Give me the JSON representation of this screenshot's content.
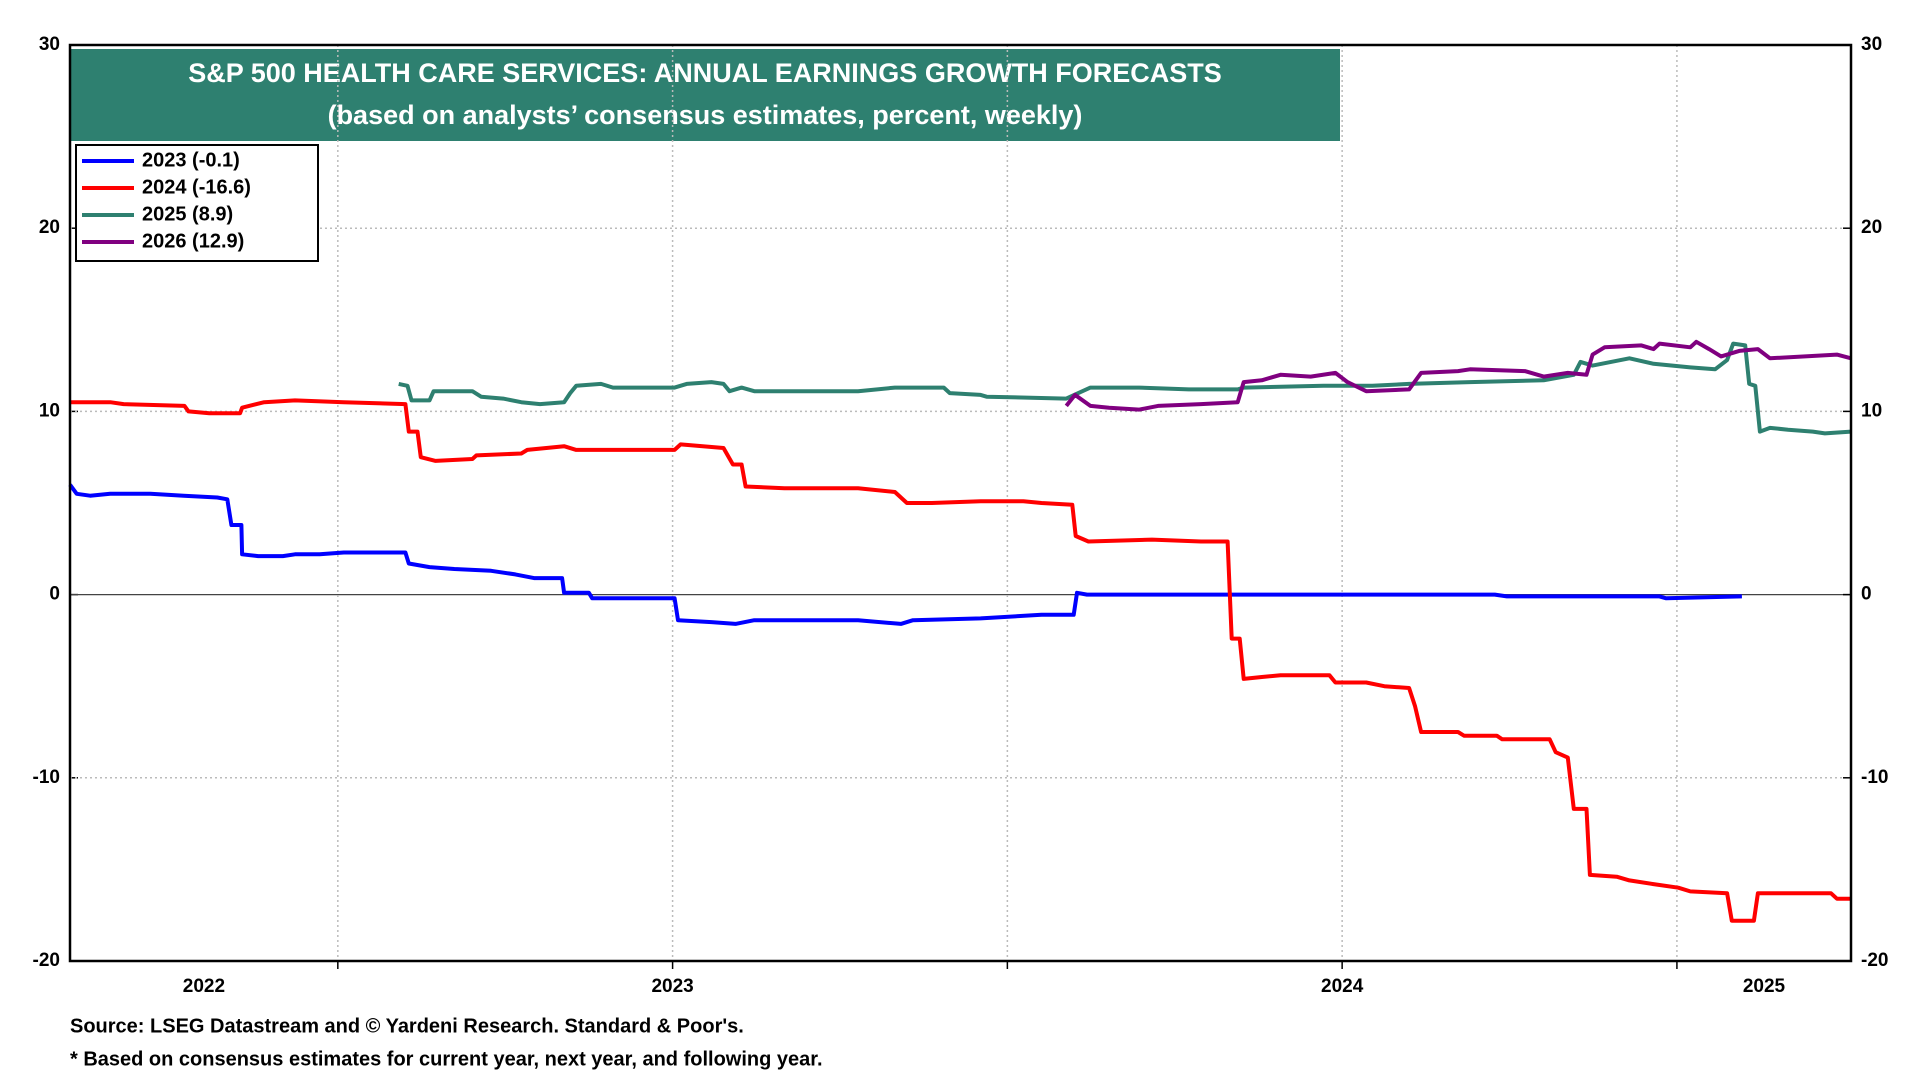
{
  "chart_data": {
    "type": "line",
    "title": "S&P 500 HEALTH CARE SERVICES: ANNUAL EARNINGS GROWTH FORECASTS",
    "subtitle": "(based on analysts’ consensus estimates, percent, weekly)",
    "source": "Source: LSEG Datastream and © Yardeni Research. Standard & Poor's.",
    "note": "* Based on consensus estimates for current year, next year, and following year.",
    "xlim": [
      2022.6,
      2025.26
    ],
    "xticks": [
      {
        "value": 2022.8,
        "label": "2022"
      },
      {
        "value": 2023.5,
        "label": "2023"
      },
      {
        "value": 2024.5,
        "label": "2024"
      },
      {
        "value": 2025.13,
        "label": "2025"
      }
    ],
    "xgrid": [
      2023,
      2023.5,
      2024,
      2024.5,
      2025
    ],
    "ylim": [
      -20,
      30
    ],
    "yticks": [
      -20,
      -10,
      0,
      10,
      20,
      30
    ],
    "y2lim": [
      -20,
      30
    ],
    "y2ticks": [
      -20,
      -10,
      0,
      10,
      20,
      30
    ],
    "grid": true,
    "legend": "upper left",
    "series": [
      {
        "name": "2023 (-0.1)",
        "color": "#0000ff",
        "x": [
          2022.6,
          2022.61,
          2022.63,
          2022.66,
          2022.72,
          2022.77,
          2022.82,
          2022.835,
          2022.841,
          2022.856,
          2022.857,
          2022.881,
          2022.918,
          2022.936,
          2022.973,
          2023.009,
          2023.101,
          2023.106,
          2023.137,
          2023.174,
          2023.229,
          2023.265,
          2023.293,
          2023.335,
          2023.338,
          2023.375,
          2023.38,
          2023.448,
          2023.503,
          2023.508,
          2023.558,
          2023.594,
          2023.622,
          2023.777,
          2023.841,
          2023.859,
          2023.96,
          2024.051,
          2024.099,
          2024.104,
          2024.119,
          2024.325,
          2024.728,
          2024.746,
          2024.974,
          2024.984,
          2025.097
        ],
        "values": [
          6.0,
          5.5,
          5.4,
          5.5,
          5.5,
          5.4,
          5.3,
          5.2,
          3.8,
          3.8,
          2.2,
          2.1,
          2.1,
          2.2,
          2.2,
          2.3,
          2.3,
          1.7,
          1.5,
          1.4,
          1.3,
          1.1,
          0.9,
          0.9,
          0.1,
          0.1,
          -0.2,
          -0.2,
          -0.2,
          -1.4,
          -1.5,
          -1.6,
          -1.4,
          -1.4,
          -1.6,
          -1.4,
          -1.3,
          -1.1,
          -1.1,
          0.1,
          0.0,
          0.0,
          0.0,
          -0.1,
          -0.1,
          -0.2,
          -0.1
        ]
      },
      {
        "name": "2024 (-16.6)",
        "color": "#ff0000",
        "x": [
          2022.6,
          2022.66,
          2022.68,
          2022.771,
          2022.777,
          2022.808,
          2022.854,
          2022.857,
          2022.89,
          2022.936,
          2023.009,
          2023.101,
          2023.106,
          2023.119,
          2023.124,
          2023.146,
          2023.201,
          2023.207,
          2023.274,
          2023.283,
          2023.338,
          2023.356,
          2023.503,
          2023.512,
          2023.576,
          2023.59,
          2023.603,
          2023.609,
          2023.667,
          2023.722,
          2023.777,
          2023.832,
          2023.85,
          2023.887,
          2023.96,
          2024.024,
          2024.051,
          2024.097,
          2024.102,
          2024.121,
          2024.216,
          2024.289,
          2024.329,
          2024.335,
          2024.347,
          2024.353,
          2024.38,
          2024.408,
          2024.481,
          2024.49,
          2024.536,
          2024.563,
          2024.6,
          2024.609,
          2024.618,
          2024.673,
          2024.682,
          2024.731,
          2024.739,
          2024.81,
          2024.819,
          2024.837,
          2024.846,
          2024.865,
          2024.87,
          2024.91,
          2024.929,
          2024.965,
          2025.002,
          2025.02,
          2025.075,
          2025.082,
          2025.115,
          2025.121,
          2025.23,
          2025.239,
          2025.26
        ],
        "values": [
          10.5,
          10.5,
          10.4,
          10.3,
          10.0,
          9.9,
          9.9,
          10.2,
          10.5,
          10.6,
          10.5,
          10.4,
          8.9,
          8.9,
          7.5,
          7.3,
          7.4,
          7.6,
          7.7,
          7.9,
          8.1,
          7.9,
          7.9,
          8.2,
          8.0,
          7.1,
          7.1,
          5.9,
          5.8,
          5.8,
          5.8,
          5.6,
          5.0,
          5.0,
          5.1,
          5.1,
          5.0,
          4.9,
          3.2,
          2.9,
          3.0,
          2.9,
          2.9,
          -2.4,
          -2.4,
          -4.6,
          -4.5,
          -4.4,
          -4.4,
          -4.8,
          -4.8,
          -5.0,
          -5.1,
          -6.1,
          -7.5,
          -7.5,
          -7.7,
          -7.7,
          -7.9,
          -7.9,
          -8.6,
          -8.9,
          -11.7,
          -11.7,
          -15.3,
          -15.4,
          -15.6,
          -15.8,
          -16.0,
          -16.2,
          -16.3,
          -17.8,
          -17.8,
          -16.3,
          -16.3,
          -16.6,
          -16.6
        ]
      },
      {
        "name": "2025 (8.9)",
        "color": "#2e8070",
        "x": [
          2023.091,
          2023.104,
          2023.11,
          2023.137,
          2023.143,
          2023.201,
          2023.214,
          2023.247,
          2023.274,
          2023.302,
          2023.338,
          2023.347,
          2023.356,
          2023.393,
          2023.411,
          2023.503,
          2023.521,
          2023.558,
          2023.576,
          2023.585,
          2023.603,
          2023.622,
          2023.722,
          2023.777,
          2023.832,
          2023.905,
          2023.914,
          2023.96,
          2023.969,
          2024.088,
          2024.106,
          2024.124,
          2024.197,
          2024.271,
          2024.344,
          2024.353,
          2024.472,
          2024.545,
          2024.6,
          2024.691,
          2024.801,
          2024.846,
          2024.856,
          2024.874,
          2024.929,
          2024.965,
          2025.02,
          2025.057,
          2025.075,
          2025.084,
          2025.102,
          2025.108,
          2025.117,
          2025.124,
          2025.139,
          2025.166,
          2025.203,
          2025.221,
          2025.26
        ],
        "values": [
          11.5,
          11.4,
          10.6,
          10.6,
          11.1,
          11.1,
          10.8,
          10.7,
          10.5,
          10.4,
          10.5,
          11.0,
          11.4,
          11.5,
          11.3,
          11.3,
          11.5,
          11.6,
          11.5,
          11.1,
          11.3,
          11.1,
          11.1,
          11.1,
          11.3,
          11.3,
          11.0,
          10.9,
          10.8,
          10.7,
          11.0,
          11.3,
          11.3,
          11.2,
          11.2,
          11.3,
          11.4,
          11.4,
          11.5,
          11.6,
          11.7,
          12.0,
          12.7,
          12.5,
          12.9,
          12.6,
          12.4,
          12.3,
          12.8,
          13.7,
          13.6,
          11.5,
          11.4,
          8.9,
          9.1,
          9.0,
          8.9,
          8.8,
          8.9
        ]
      },
      {
        "name": "2026 (12.9)",
        "color": "#800080",
        "x": [
          2024.088,
          2024.101,
          2024.124,
          2024.152,
          2024.197,
          2024.225,
          2024.289,
          2024.344,
          2024.353,
          2024.38,
          2024.408,
          2024.453,
          2024.49,
          2024.508,
          2024.536,
          2024.6,
          2024.618,
          2024.673,
          2024.691,
          2024.773,
          2024.801,
          2024.837,
          2024.865,
          2024.874,
          2024.892,
          2024.947,
          2024.965,
          2024.974,
          2025.02,
          2025.029,
          2025.048,
          2025.066,
          2025.093,
          2025.121,
          2025.139,
          2025.239,
          2025.26
        ],
        "values": [
          10.3,
          10.9,
          10.3,
          10.2,
          10.1,
          10.3,
          10.4,
          10.5,
          11.6,
          11.7,
          12.0,
          11.9,
          12.1,
          11.6,
          11.1,
          11.2,
          12.1,
          12.2,
          12.3,
          12.2,
          11.9,
          12.1,
          12.0,
          13.1,
          13.5,
          13.6,
          13.4,
          13.7,
          13.5,
          13.8,
          13.4,
          13.0,
          13.3,
          13.4,
          12.9,
          13.1,
          12.9
        ]
      }
    ]
  }
}
